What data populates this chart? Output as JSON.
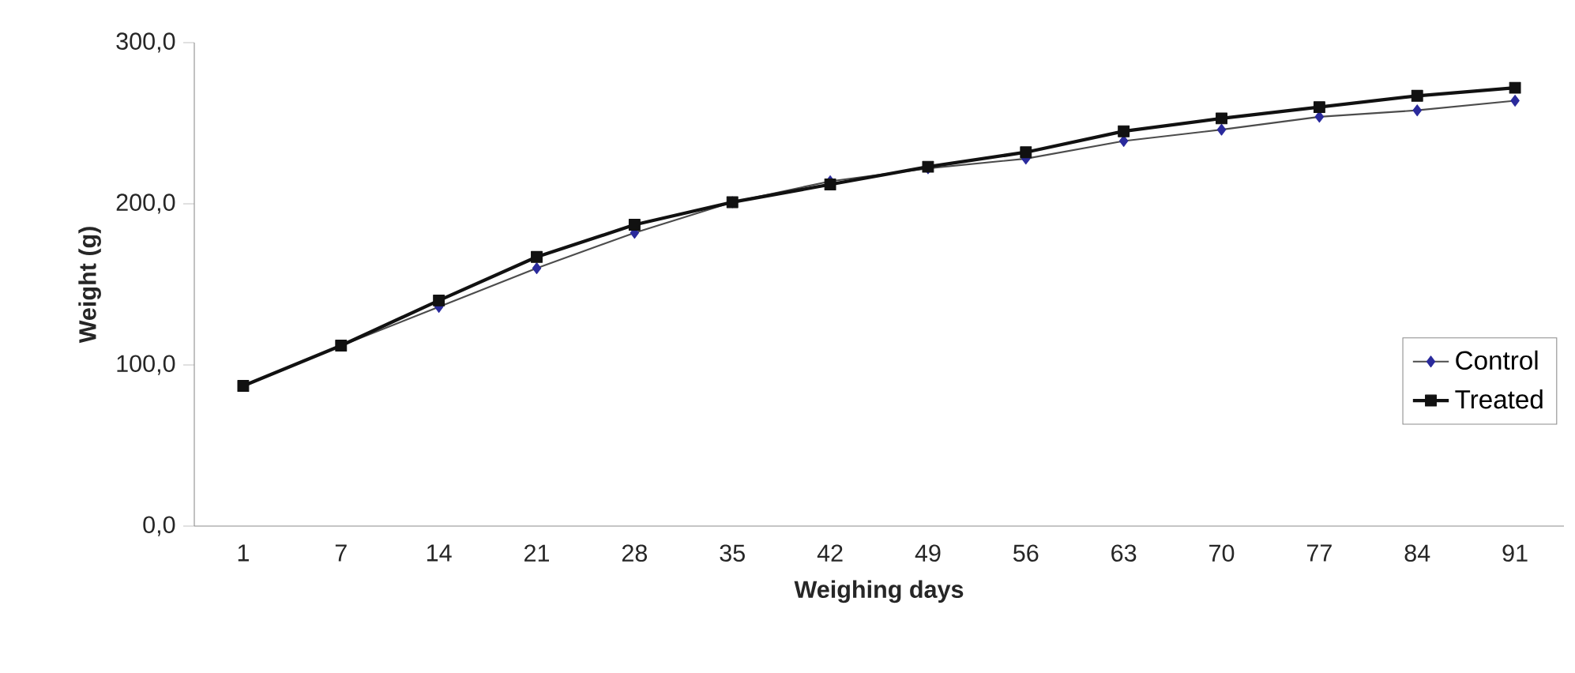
{
  "chart_data": {
    "type": "line",
    "xlabel": "Weighing days",
    "ylabel": "Weight (g)",
    "categories": [
      "1",
      "7",
      "14",
      "21",
      "28",
      "35",
      "42",
      "49",
      "56",
      "63",
      "70",
      "77",
      "84",
      "91"
    ],
    "series": [
      {
        "name": "Control",
        "color": "#2a2a9c",
        "marker": "diamond",
        "values": [
          87,
          112,
          136,
          160,
          182,
          201,
          214,
          222,
          228,
          239,
          246,
          254,
          258,
          264
        ]
      },
      {
        "name": "Treated",
        "color": "#111111",
        "marker": "square",
        "values": [
          87,
          112,
          140,
          167,
          187,
          201,
          212,
          223,
          232,
          245,
          253,
          260,
          267,
          272
        ]
      }
    ],
    "ylim": [
      0,
      300
    ],
    "yticks": [
      {
        "value": 0,
        "label": "0,0"
      },
      {
        "value": 100,
        "label": "100,0"
      },
      {
        "value": 200,
        "label": "200,0"
      },
      {
        "value": 300,
        "label": "300,0"
      }
    ],
    "grid": false,
    "legend": "right",
    "line_style": "solid"
  }
}
